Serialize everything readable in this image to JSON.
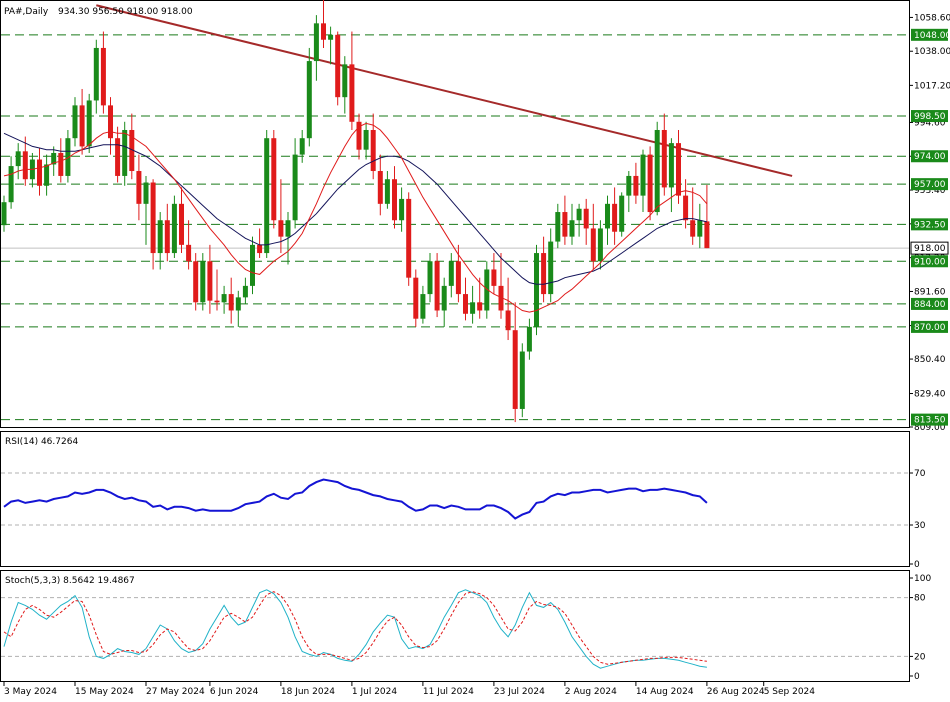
{
  "header": {
    "symbol": "PA#,Daily",
    "ohlc": "934.30 956.50 918.00 918.00"
  },
  "colors": {
    "bull": "#1a8a1a",
    "bear": "#e01b1b",
    "hline": "#1a7a1a",
    "trendline": "#a52a2a",
    "ma_fast": "#e01b1b",
    "ma_slow": "#14145a",
    "rsi_line": "#1414d4",
    "stoch_main": "#20b2c8",
    "stoch_signal": "#e01b1b",
    "level_tag_bg": "#1a8a1a"
  },
  "chart_data": [
    {
      "type": "candlestick",
      "title": "PA#,Daily",
      "ylim": [
        809,
        1068
      ],
      "y_ticks": [
        809.0,
        829.4,
        850.4,
        870.8,
        891.6,
        912.2,
        932.8,
        953.4,
        974.0,
        994.6,
        1017.2,
        1038.0,
        1058.6
      ],
      "y_tick_labels": [
        "809.00",
        "829.40",
        "850.40",
        "870.80",
        "891.60",
        "912.20",
        "932.80",
        "953.40",
        "974.00",
        "994.60",
        "1017.20",
        "1038.00",
        "1058.60"
      ],
      "x_labels": [
        "3 May 2024",
        "15 May 2024",
        "27 May 2024",
        "6 Jun 2024",
        "18 Jun 2024",
        "1 Jul 2024",
        "11 Jul 2024",
        "23 Jul 2024",
        "2 Aug 2024",
        "14 Aug 2024",
        "26 Aug 2024",
        "5 Sep 2024"
      ],
      "x_label_bars": [
        0,
        10,
        20,
        29,
        39,
        49,
        59,
        69,
        79,
        89,
        99,
        107
      ],
      "horizontal_levels": [
        1048.0,
        998.5,
        974.0,
        957.0,
        932.5,
        910.0,
        884.0,
        870.0,
        813.5
      ],
      "level_labels": [
        "1048.00",
        "998.50",
        "974.00",
        "957.00",
        "932.50",
        "910.00",
        "884.00",
        "870.00",
        "813.50"
      ],
      "current_price": 918.0,
      "current_price_label": "918.00",
      "trendline": {
        "start": {
          "bar": 13,
          "price": 1066
        },
        "end": {
          "bar": 111,
          "price": 962
        }
      },
      "candles": [
        [
          932,
          950,
          928,
          946
        ],
        [
          946,
          974,
          942,
          968
        ],
        [
          968,
          982,
          960,
          977
        ],
        [
          977,
          986,
          956,
          960
        ],
        [
          960,
          976,
          955,
          972
        ],
        [
          972,
          979,
          950,
          956
        ],
        [
          956,
          975,
          950,
          969
        ],
        [
          969,
          980,
          962,
          976
        ],
        [
          976,
          985,
          958,
          962
        ],
        [
          962,
          990,
          958,
          985
        ],
        [
          985,
          1010,
          980,
          1005
        ],
        [
          1005,
          1015,
          975,
          980
        ],
        [
          980,
          1012,
          976,
          1008
        ],
        [
          1008,
          1045,
          1000,
          1040
        ],
        [
          1040,
          1050,
          1000,
          1005
        ],
        [
          1005,
          1010,
          975,
          985
        ],
        [
          985,
          992,
          958,
          962
        ],
        [
          962,
          995,
          956,
          990
        ],
        [
          990,
          1000,
          960,
          965
        ],
        [
          965,
          975,
          935,
          945
        ],
        [
          945,
          962,
          920,
          958
        ],
        [
          958,
          960,
          905,
          915
        ],
        [
          915,
          940,
          905,
          935
        ],
        [
          935,
          945,
          910,
          915
        ],
        [
          915,
          950,
          912,
          945
        ],
        [
          945,
          955,
          915,
          920
        ],
        [
          920,
          935,
          905,
          910
        ],
        [
          910,
          915,
          880,
          885
        ],
        [
          885,
          915,
          880,
          910
        ],
        [
          910,
          920,
          878,
          886
        ],
        [
          886,
          905,
          880,
          885
        ],
        [
          885,
          895,
          878,
          890
        ],
        [
          890,
          900,
          872,
          880
        ],
        [
          880,
          892,
          870,
          888
        ],
        [
          888,
          900,
          884,
          895
        ],
        [
          895,
          925,
          890,
          920
        ],
        [
          920,
          930,
          912,
          915
        ],
        [
          915,
          990,
          912,
          985
        ],
        [
          985,
          990,
          930,
          935
        ],
        [
          935,
          960,
          915,
          925
        ],
        [
          925,
          940,
          908,
          935
        ],
        [
          935,
          985,
          930,
          975
        ],
        [
          975,
          990,
          970,
          985
        ],
        [
          985,
          1040,
          980,
          1032
        ],
        [
          1032,
          1060,
          1020,
          1055
        ],
        [
          1055,
          1070,
          1040,
          1045
        ],
        [
          1045,
          1053,
          1030,
          1048
        ],
        [
          1048,
          1050,
          1005,
          1010
        ],
        [
          1010,
          1035,
          1000,
          1030
        ],
        [
          1030,
          1050,
          990,
          995
        ],
        [
          995,
          1000,
          972,
          978
        ],
        [
          978,
          995,
          972,
          990
        ],
        [
          990,
          1000,
          960,
          965
        ],
        [
          965,
          975,
          938,
          945
        ],
        [
          945,
          965,
          942,
          960
        ],
        [
          960,
          968,
          930,
          935
        ],
        [
          935,
          955,
          928,
          948
        ],
        [
          948,
          952,
          895,
          900
        ],
        [
          900,
          905,
          870,
          875
        ],
        [
          875,
          895,
          872,
          890
        ],
        [
          890,
          915,
          885,
          910
        ],
        [
          910,
          915,
          876,
          880
        ],
        [
          880,
          900,
          870,
          895
        ],
        [
          895,
          915,
          888,
          910
        ],
        [
          910,
          920,
          885,
          890
        ],
        [
          890,
          900,
          874,
          878
        ],
        [
          878,
          895,
          872,
          885
        ],
        [
          885,
          900,
          875,
          880
        ],
        [
          880,
          910,
          875,
          905
        ],
        [
          905,
          915,
          890,
          895
        ],
        [
          895,
          915,
          875,
          880
        ],
        [
          880,
          900,
          862,
          868
        ],
        [
          868,
          885,
          812,
          820
        ],
        [
          820,
          860,
          815,
          855
        ],
        [
          855,
          875,
          850,
          870
        ],
        [
          870,
          920,
          865,
          915
        ],
        [
          915,
          925,
          885,
          890
        ],
        [
          890,
          930,
          885,
          922
        ],
        [
          922,
          945,
          918,
          940
        ],
        [
          940,
          950,
          920,
          925
        ],
        [
          925,
          945,
          920,
          935
        ],
        [
          935,
          945,
          925,
          942
        ],
        [
          942,
          948,
          920,
          930
        ],
        [
          930,
          945,
          905,
          910
        ],
        [
          910,
          935,
          905,
          930
        ],
        [
          930,
          950,
          920,
          945
        ],
        [
          945,
          955,
          920,
          928
        ],
        [
          928,
          952,
          925,
          950
        ],
        [
          950,
          965,
          940,
          962
        ],
        [
          962,
          970,
          945,
          950
        ],
        [
          950,
          978,
          940,
          975
        ],
        [
          975,
          980,
          935,
          940
        ],
        [
          940,
          995,
          938,
          990
        ],
        [
          990,
          1000,
          950,
          955
        ],
        [
          955,
          985,
          940,
          982
        ],
        [
          982,
          990,
          945,
          950
        ],
        [
          950,
          960,
          930,
          935
        ],
        [
          935,
          955,
          920,
          925
        ],
        [
          925,
          945,
          918,
          935
        ],
        [
          934.3,
          956.5,
          918,
          918
        ]
      ],
      "ma_fast": [
        962,
        963,
        965,
        966,
        966,
        967,
        968,
        970,
        971,
        973,
        976,
        978,
        981,
        985,
        988,
        989,
        988,
        988,
        986,
        983,
        980,
        975,
        970,
        965,
        960,
        954,
        948,
        942,
        936,
        930,
        925,
        920,
        914,
        909,
        905,
        903,
        902,
        906,
        910,
        913,
        916,
        921,
        927,
        936,
        945,
        955,
        964,
        972,
        980,
        987,
        992,
        994,
        993,
        990,
        985,
        979,
        973,
        965,
        957,
        949,
        942,
        935,
        928,
        921,
        914,
        908,
        902,
        897,
        893,
        890,
        888,
        886,
        883,
        880,
        879,
        880,
        882,
        884,
        886,
        890,
        893,
        897,
        901,
        905,
        909,
        914,
        918,
        922,
        926,
        930,
        934,
        938,
        943,
        946,
        949,
        952,
        953,
        952,
        950,
        945
      ],
      "ma_slow": [
        988,
        986,
        984,
        982,
        980,
        979,
        978,
        978,
        977,
        977,
        977,
        978,
        979,
        980,
        981,
        981,
        981,
        980,
        978,
        976,
        974,
        971,
        968,
        964,
        960,
        956,
        952,
        948,
        944,
        940,
        936,
        933,
        930,
        927,
        924,
        922,
        920,
        920,
        921,
        922,
        924,
        927,
        931,
        935,
        939,
        944,
        949,
        954,
        958,
        962,
        966,
        969,
        971,
        973,
        974,
        974,
        973,
        971,
        968,
        965,
        961,
        957,
        952,
        947,
        942,
        937,
        932,
        927,
        922,
        917,
        912,
        908,
        904,
        900,
        897,
        896,
        896,
        897,
        898,
        900,
        901,
        902,
        903,
        904,
        906,
        909,
        912,
        915,
        918,
        921,
        924,
        927,
        930,
        932,
        934,
        935,
        936,
        936,
        935,
        934
      ]
    },
    {
      "type": "line",
      "title": "RSI(14) 46.7264",
      "ylim": [
        0,
        100
      ],
      "y_tick_labels": [
        "70",
        "30",
        "0"
      ],
      "y_ticks": [
        70,
        30,
        0
      ],
      "levels": [
        70,
        30
      ],
      "series": [
        {
          "name": "RSI(14)",
          "values": [
            44,
            48,
            49,
            47,
            48,
            49,
            48,
            50,
            51,
            52,
            55,
            54,
            55,
            57,
            57,
            55,
            52,
            50,
            51,
            49,
            48,
            44,
            45,
            42,
            44,
            44,
            43,
            41,
            42,
            41,
            41,
            41,
            41,
            43,
            46,
            47,
            48,
            52,
            54,
            51,
            50,
            54,
            55,
            60,
            63,
            65,
            64,
            63,
            60,
            58,
            57,
            55,
            53,
            52,
            50,
            49,
            48,
            44,
            41,
            42,
            45,
            45,
            43,
            45,
            44,
            42,
            42,
            42,
            45,
            45,
            43,
            40,
            35,
            38,
            40,
            47,
            48,
            52,
            54,
            53,
            55,
            55,
            56,
            57,
            57,
            55,
            56,
            57,
            58,
            58,
            56,
            57,
            57,
            58,
            57,
            56,
            55,
            53,
            52,
            47
          ]
        }
      ]
    },
    {
      "type": "line",
      "title": "Stoch(5,3,3) 8.5642 19.4867",
      "ylim": [
        0,
        100
      ],
      "y_tick_labels": [
        "100",
        "80",
        "20",
        "0"
      ],
      "y_ticks": [
        100,
        80,
        20,
        0
      ],
      "levels": [
        80,
        20
      ],
      "series": [
        {
          "name": "Stoch main",
          "values": [
            30,
            55,
            75,
            72,
            68,
            62,
            58,
            65,
            72,
            76,
            82,
            70,
            40,
            20,
            18,
            22,
            28,
            25,
            24,
            22,
            28,
            40,
            52,
            48,
            36,
            28,
            24,
            26,
            33,
            48,
            60,
            72,
            60,
            52,
            55,
            70,
            85,
            88,
            84,
            75,
            60,
            40,
            25,
            22,
            20,
            24,
            22,
            18,
            16,
            15,
            22,
            32,
            45,
            54,
            62,
            60,
            38,
            28,
            30,
            28,
            32,
            45,
            60,
            72,
            85,
            88,
            85,
            82,
            75,
            60,
            48,
            40,
            52,
            70,
            85,
            72,
            70,
            75,
            68,
            55,
            40,
            30,
            20,
            12,
            8,
            10,
            12,
            14,
            15,
            16,
            16,
            17,
            18,
            18,
            17,
            16,
            14,
            12,
            10,
            9
          ]
        },
        {
          "name": "Stoch signal",
          "values": [
            45,
            40,
            55,
            68,
            72,
            68,
            62,
            60,
            65,
            71,
            77,
            76,
            62,
            42,
            25,
            22,
            24,
            26,
            26,
            24,
            25,
            32,
            42,
            48,
            45,
            36,
            28,
            26,
            28,
            36,
            48,
            60,
            64,
            60,
            55,
            60,
            72,
            83,
            86,
            82,
            72,
            58,
            40,
            28,
            22,
            22,
            22,
            20,
            18,
            16,
            18,
            24,
            34,
            46,
            56,
            60,
            52,
            40,
            31,
            29,
            30,
            36,
            48,
            62,
            75,
            84,
            86,
            84,
            80,
            72,
            60,
            48,
            46,
            55,
            70,
            76,
            73,
            72,
            70,
            64,
            52,
            40,
            30,
            20,
            14,
            12,
            13,
            14,
            15,
            16,
            17,
            18,
            18,
            19,
            19,
            19,
            18,
            17,
            16,
            15
          ]
        }
      ]
    }
  ]
}
